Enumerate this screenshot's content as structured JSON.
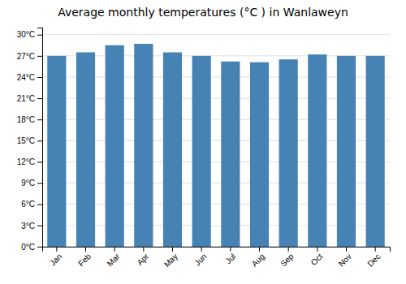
{
  "chart_data": {
    "type": "bar",
    "title": "Average monthly temperatures (°C ) in Wanlaweyn",
    "categories": [
      "Jan",
      "Feb",
      "Mar",
      "Apr",
      "May",
      "Jun",
      "Jul",
      "Aug",
      "Sep",
      "Oct",
      "Nov",
      "Dec"
    ],
    "values": [
      27.0,
      27.5,
      28.5,
      28.7,
      27.5,
      27.0,
      26.2,
      26.1,
      26.5,
      27.2,
      27.0,
      27.0
    ],
    "ylim": [
      0,
      31
    ],
    "yticks": [
      {
        "value": 0,
        "label": "0°C"
      },
      {
        "value": 3,
        "label": "3°C"
      },
      {
        "value": 6,
        "label": "6°C"
      },
      {
        "value": 9,
        "label": "9°C"
      },
      {
        "value": 12,
        "label": "12°C"
      },
      {
        "value": 15,
        "label": "15°C"
      },
      {
        "value": 18,
        "label": "18°C"
      },
      {
        "value": 21,
        "label": "21°C"
      },
      {
        "value": 24,
        "label": "24°C"
      },
      {
        "value": 27,
        "label": "27°C"
      },
      {
        "value": 30,
        "label": "30°C"
      }
    ],
    "grid": true
  }
}
